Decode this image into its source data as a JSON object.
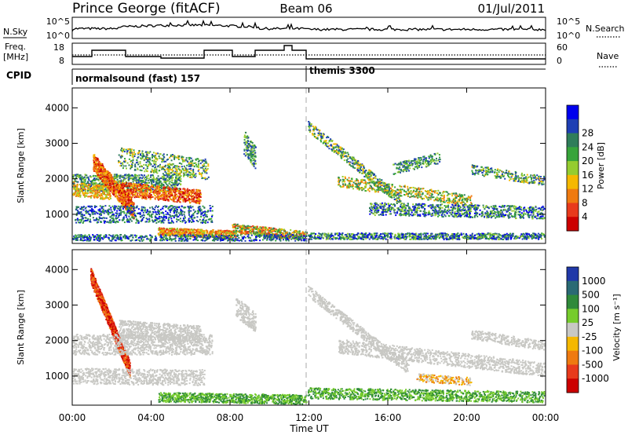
{
  "header": {
    "station": "Prince George (fitACF)",
    "beam": "Beam 06",
    "date": "01/Jul/2011"
  },
  "nsky_panel": {
    "left_label": "N.Sky",
    "left_ticks": [
      "10^5",
      "10^0"
    ],
    "right_ticks": [
      "10^5",
      "10^0"
    ],
    "right_label": "N.Search"
  },
  "freq_panel": {
    "left_label_1": "Freq.",
    "left_label_2": "[MHz]",
    "left_ticks": [
      "18",
      "8"
    ],
    "right_ticks": [
      "60",
      "0"
    ],
    "right_label": "Nave"
  },
  "cpid_panel": {
    "label": "CPID",
    "mode_1": "normalsound (fast) 157",
    "mode_2": "themis 3300"
  },
  "chart_data": [
    {
      "type": "heatmap",
      "name": "power",
      "ylabel": "Slant Range [km]",
      "ylim": [
        180,
        4560
      ],
      "yticks": [
        "1000",
        "2000",
        "3000",
        "4000"
      ],
      "colorbar": {
        "label": "Power [dB]",
        "ticks": [
          "4",
          "8",
          "12",
          "16",
          "20",
          "24",
          "28"
        ],
        "colors": [
          "#0000ee",
          "#1e3fb4",
          "#2f7d5a",
          "#37a43a",
          "#95cc30",
          "#f5b800",
          "#ef7a10",
          "#e83a1c",
          "#cc0000"
        ]
      }
    },
    {
      "type": "heatmap",
      "name": "velocity",
      "ylabel": "Slant Range [km]",
      "ylim": [
        180,
        4560
      ],
      "yticks": [
        "1000",
        "2000",
        "3000",
        "4000"
      ],
      "colorbar": {
        "label": "Velocity [m s⁻¹]",
        "ticks": [
          "1000",
          "500",
          "100",
          "25",
          "-25",
          "-100",
          "-500",
          "-1000"
        ],
        "colors": [
          "#2038a8",
          "#2a6a74",
          "#2f8a3a",
          "#76cc2c",
          "#c8c8c4",
          "#f5b800",
          "#ef7a10",
          "#e83a1c",
          "#cc0000"
        ]
      }
    }
  ],
  "time_axis": {
    "xlabel": "Time UT",
    "ticks": [
      "00:00",
      "04:00",
      "08:00",
      "12:00",
      "16:00",
      "20:00",
      "00:00"
    ]
  }
}
